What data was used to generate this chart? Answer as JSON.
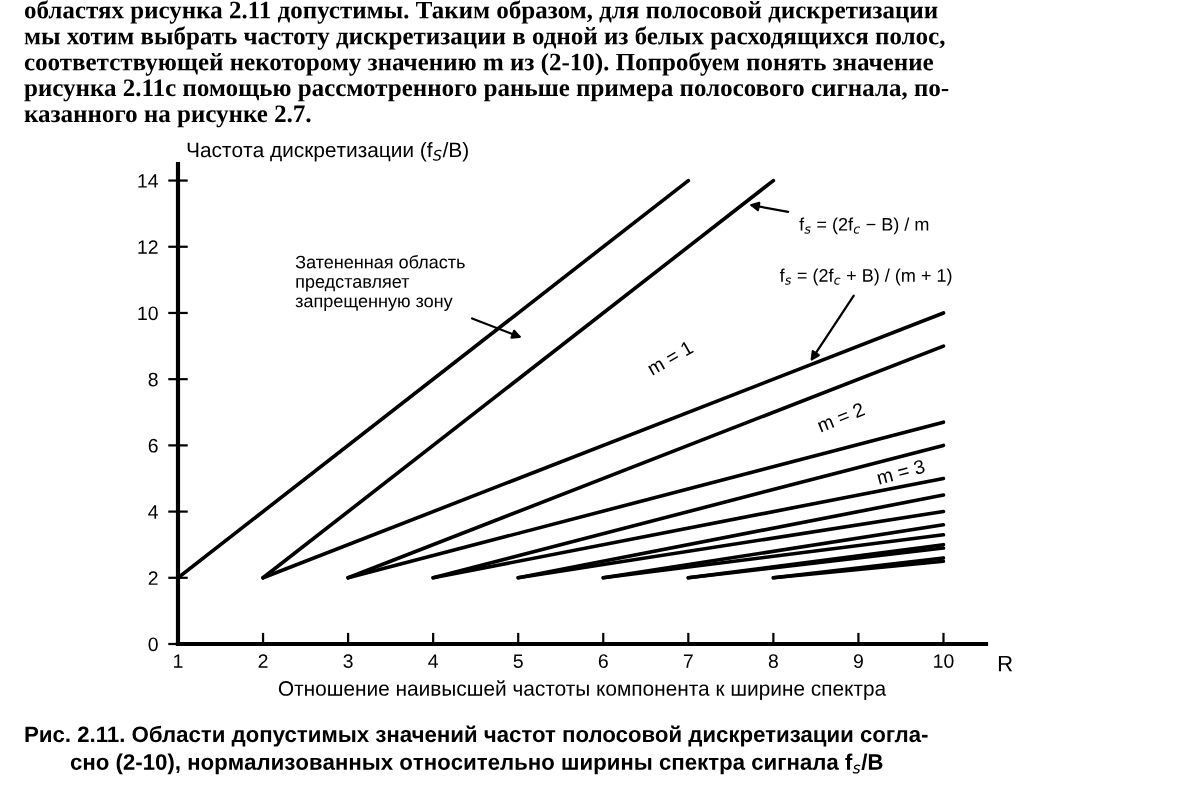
{
  "chart_data": {
    "type": "line",
    "ylabel": "Частота дискретизации (f$_{S}$/B)",
    "xlabel": "Отношение наивысшей частоты компонента к ширине спектра",
    "xlim": [
      1,
      10.5
    ],
    "ylim": [
      0,
      14.5
    ],
    "xticks": [
      1,
      2,
      3,
      4,
      5,
      6,
      7,
      8,
      9,
      10
    ],
    "yticks": [
      0,
      2,
      4,
      6,
      8,
      10,
      12,
      14
    ],
    "grid": false,
    "legend": false,
    "marker": "none",
    "line_style": "solid",
    "series": [
      {
        "color": "#000000",
        "x": [
          1,
          7
        ],
        "values": [
          2,
          14
        ]
      },
      {
        "color": "#000000",
        "x": [
          2,
          8
        ],
        "values": [
          2,
          14
        ]
      },
      {
        "color": "#000000",
        "x": [
          2,
          10
        ],
        "values": [
          2,
          10
        ]
      },
      {
        "color": "#000000",
        "x": [
          3,
          10
        ],
        "values": [
          2,
          9
        ]
      },
      {
        "color": "#000000",
        "x": [
          3,
          10
        ],
        "values": [
          2,
          6.7
        ]
      },
      {
        "color": "#000000",
        "x": [
          4,
          10
        ],
        "values": [
          2,
          6
        ]
      },
      {
        "color": "#000000",
        "x": [
          4,
          10
        ],
        "values": [
          2,
          5
        ]
      },
      {
        "color": "#000000",
        "x": [
          5,
          10
        ],
        "values": [
          2,
          4.5
        ]
      },
      {
        "color": "#000000",
        "x": [
          5,
          10
        ],
        "values": [
          2,
          4
        ]
      },
      {
        "color": "#000000",
        "x": [
          6,
          10
        ],
        "values": [
          2,
          3.6
        ]
      },
      {
        "color": "#000000",
        "x": [
          6,
          10
        ],
        "values": [
          2,
          3.3
        ]
      },
      {
        "color": "#000000",
        "x": [
          7,
          10
        ],
        "values": [
          2,
          3
        ]
      },
      {
        "color": "#000000",
        "x": [
          7,
          10
        ],
        "values": [
          2,
          2.9
        ]
      },
      {
        "color": "#000000",
        "x": [
          8,
          10
        ],
        "values": [
          2,
          2.6
        ]
      },
      {
        "color": "#000000",
        "x": [
          8,
          10
        ],
        "values": [
          2,
          2.5
        ]
      }
    ],
    "annotations": [
      "областях рисунка 2.11 допустимы. Таким образом, для полосовой дискретизации",
      "мы хотим выбрать частоту дискретизации в одной из белых расходящихся полос,",
      "соответствующей некоторому значению m из (2-10). Попробуем понять значение",
      "рисунка 2.11c помощью рассмотренного раньше примера полосового сигнала, по-",
      "казанного на рисунке 2.7.",
      "R",
      "Затененная область\nпредставляет\nзапрещенную зону",
      {
        "text": "f$_{s}$ = (2f$_{c}$ − B) / m",
        "x": 7.65,
        "y": 13.3
      },
      {
        "text": "f$_{s}$ = (2f$_{c}$ + B) / (m + 1)",
        "x": 8.4,
        "y": 8.4
      },
      "m = 1",
      "m = 2",
      "m = 3",
      "Рис. 2.11. Области допустимых значений частот полосовой дискретизации согла-",
      "сно (2-10), нормализованных относительно ширины спектра сигнала f$_{s}$/B"
    ]
  }
}
